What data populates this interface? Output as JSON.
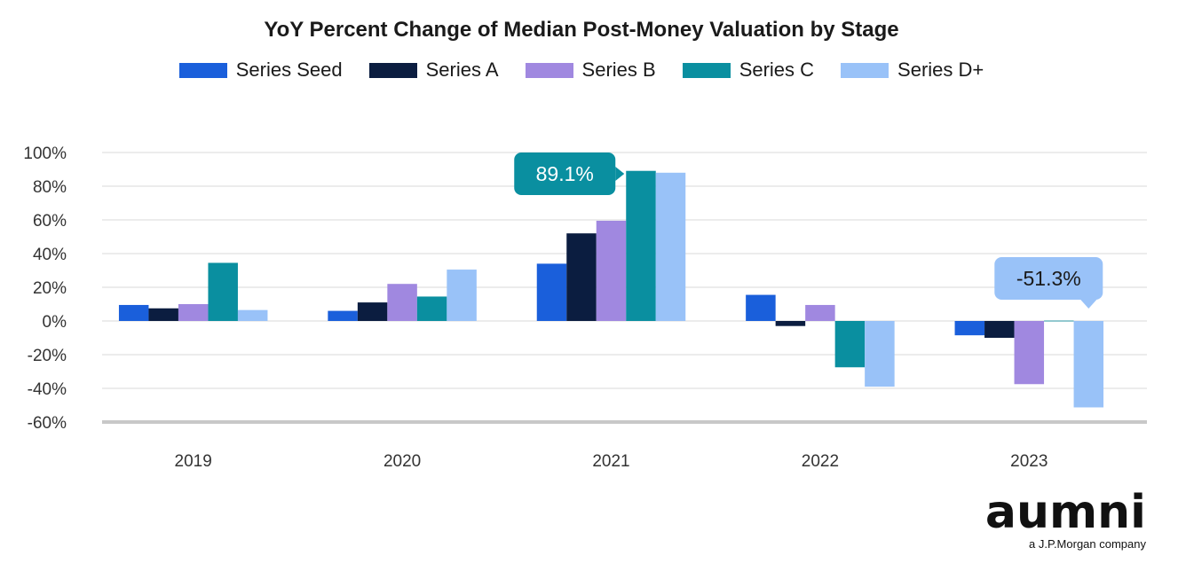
{
  "chart_data": {
    "type": "bar",
    "title": "YoY Percent Change of Median Post-Money Valuation by Stage",
    "categories": [
      "2019",
      "2020",
      "2021",
      "2022",
      "2023"
    ],
    "series": [
      {
        "name": "Series Seed",
        "color": "#1a5fdb",
        "values": [
          9.5,
          6.0,
          34.0,
          15.5,
          -8.5
        ]
      },
      {
        "name": "Series A",
        "color": "#0b1d40",
        "values": [
          7.5,
          11.0,
          52.0,
          -3.0,
          -10.0
        ]
      },
      {
        "name": "Series B",
        "color": "#a088e0",
        "values": [
          10.0,
          22.0,
          59.5,
          9.5,
          -37.5
        ]
      },
      {
        "name": "Series C",
        "color": "#0a8fa0",
        "values": [
          34.5,
          14.5,
          89.1,
          -27.5,
          0.2
        ]
      },
      {
        "name": "Series D+",
        "color": "#99c2f8",
        "values": [
          6.5,
          30.5,
          88.0,
          -39.0,
          -51.3
        ]
      }
    ],
    "yticks": [
      "100%",
      "80%",
      "60%",
      "40%",
      "20%",
      "0%",
      "-20%",
      "-40%",
      "-60%"
    ],
    "ylim": [
      -60,
      100
    ],
    "grid": true,
    "legend": "top",
    "annotations": [
      {
        "text": "89.1%",
        "category": "2021",
        "series": "Series C",
        "color": "#0a8fa0",
        "text_color": "#ffffff"
      },
      {
        "text": "-51.3%",
        "category": "2023",
        "series": "Series D+",
        "color": "#99c2f8",
        "text_color": "#1a1a1a"
      }
    ]
  },
  "logo": {
    "word": "aumni",
    "tagline": "a J.P.Morgan company"
  }
}
